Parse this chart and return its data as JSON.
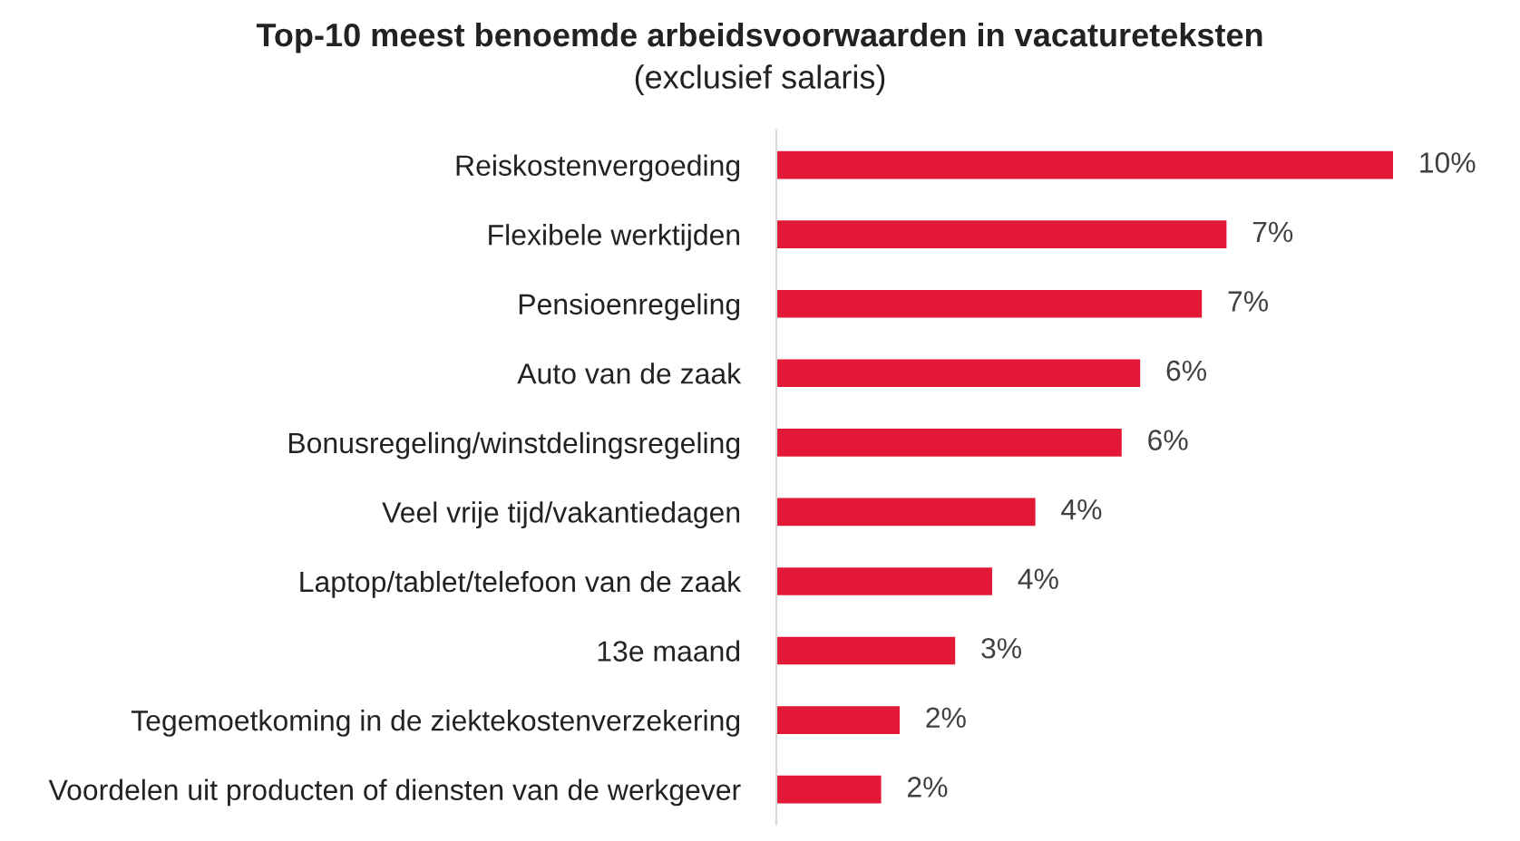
{
  "chart_data": {
    "type": "bar",
    "orientation": "horizontal",
    "xlim": [
      0,
      10
    ],
    "title": "Top-10 meest benoemde arbeidsvoorwaarden in vacatureteksten",
    "subtitle": "(exclusief salaris)",
    "categories": [
      "Reiskostenvergoeding",
      "Flexibele werktijden",
      "Pensioenregeling",
      "Auto van de zaak",
      "Bonusregeling/winstdelingsregeling",
      "Veel vrije tijd/vakantiedagen",
      "Laptop/tablet/telefoon van de zaak",
      "13e maand",
      "Tegemoetkoming in de ziektekostenverzekering",
      "Voordelen uit producten of diensten van de werkgever"
    ],
    "values": [
      10,
      7.3,
      6.9,
      5.9,
      5.6,
      4.2,
      3.5,
      2.9,
      2.0,
      1.7
    ],
    "value_labels": [
      "10%",
      "7%",
      "7%",
      "6%",
      "6%",
      "4%",
      "4%",
      "3%",
      "2%",
      "2%"
    ],
    "color": "#e31837",
    "grid": false,
    "legend": false
  }
}
